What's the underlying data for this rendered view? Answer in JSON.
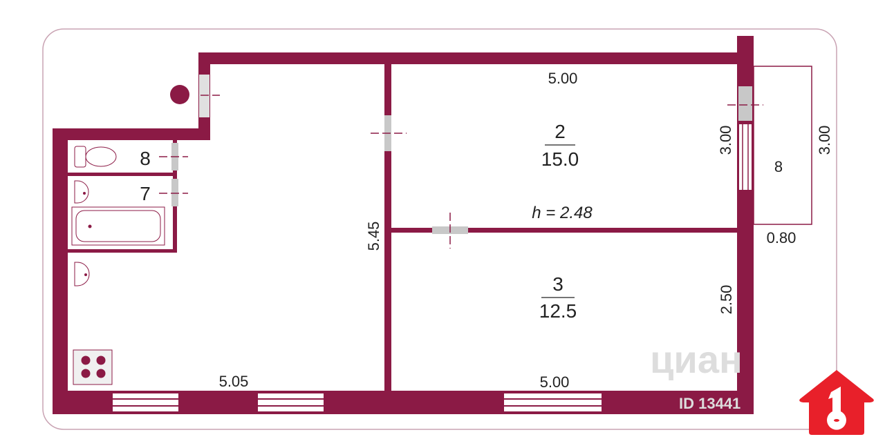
{
  "colors": {
    "wall": "#8b1a45",
    "door": "#c8c8c8",
    "border": "#c9a3b3",
    "logo": "#e8202a"
  },
  "rooms": [
    {
      "number": "2",
      "area": "15.0"
    },
    {
      "number": "3",
      "area": "12.5"
    }
  ],
  "fixtures": {
    "toilet_label": "8",
    "bath_label": "7",
    "balcony_label": "8"
  },
  "ceiling_height": "h = 2.48",
  "dimensions": {
    "room2_width": "5.00",
    "room2_depth": "3.00",
    "room3_width": "5.00",
    "room3_depth": "2.50",
    "kitchen_width": "5.05",
    "kitchen_depth": "5.45",
    "balcony_length": "3.00",
    "balcony_width": "0.80"
  },
  "watermarks": {
    "cian": "циан",
    "listing_id": "ID 13441"
  },
  "logo": {
    "icon": "house-key-icon",
    "digit": "1"
  }
}
